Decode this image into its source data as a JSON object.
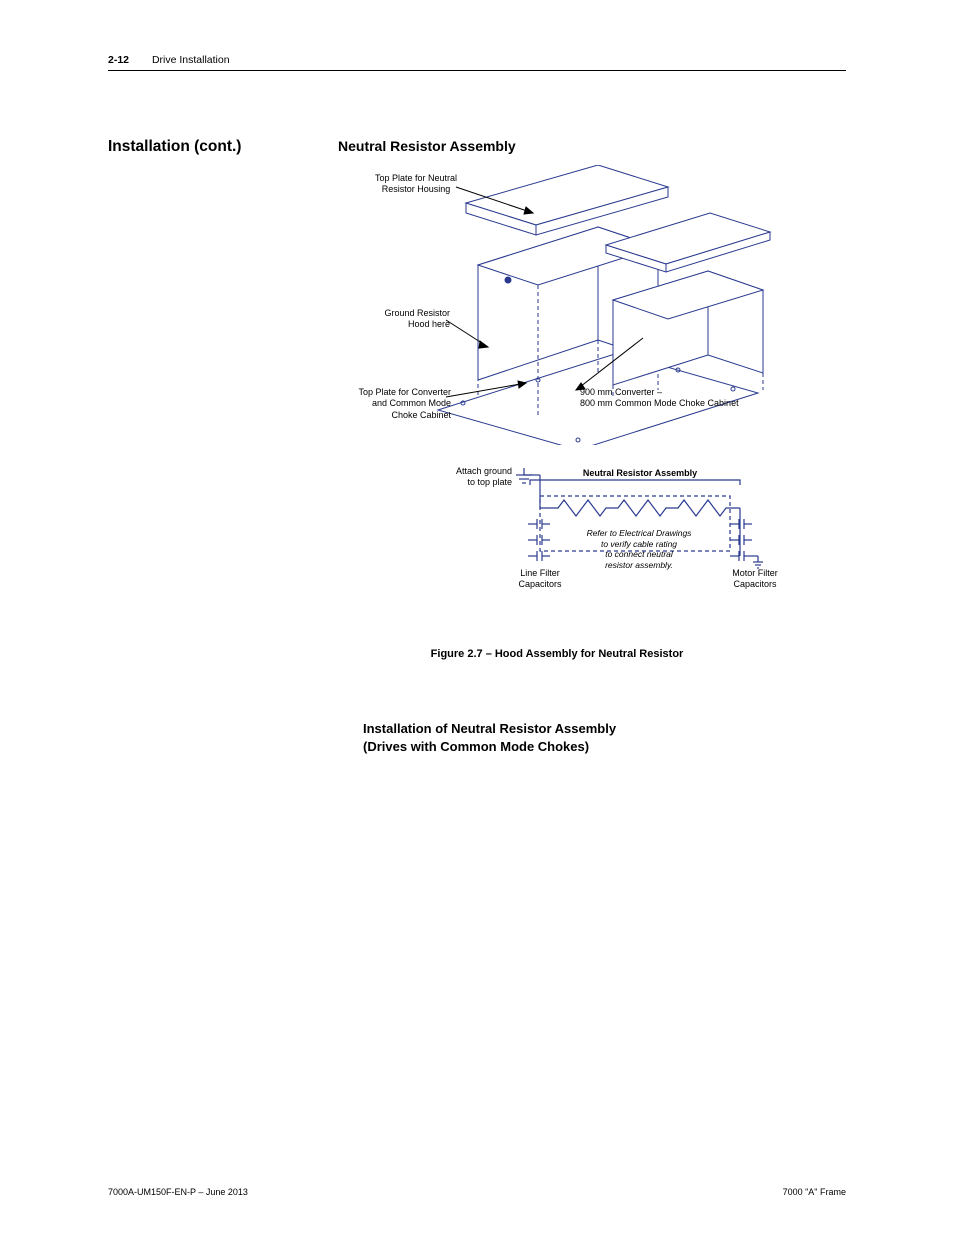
{
  "header": {
    "page_number": "2-12",
    "chapter": "Drive Installation"
  },
  "section_title": "Installation (cont.)",
  "sub_heading": "Neutral Resistor Assembly",
  "diagram1": {
    "labels": {
      "top_plate_neutral": "Top Plate for Neutral\nResistor Housing",
      "ground_resistor": "Ground Resistor\nHood here",
      "top_plate_converter": "Top Plate for Converter\nand Common Mode\nChoke Cabinet",
      "converter_note": "900 mm Converter –\n800 mm Common Mode Choke Cabinet"
    },
    "line_color": "#2a3a8f",
    "background": "#ffffff"
  },
  "diagram2": {
    "labels": {
      "ground": "Attach ground\nto top plate",
      "title": "Neutral Resistor Assembly",
      "note": "Refer to Electrical Drawings\nto verify cable rating\nto connect neutral\nresistor assembly.",
      "line_filter": "Line Filter\nCapacitors",
      "motor_filter": "Motor Filter\nCapacitors"
    },
    "schematic_color": "#2a3a8f"
  },
  "figure_caption": "Figure 2.7 – Hood Assembly for Neutral Resistor",
  "body_heading_line1": "Installation of Neutral Resistor Assembly",
  "body_heading_line2": "(Drives with Common Mode Chokes)",
  "footer": {
    "left": "7000A-UM150F-EN-P – June 2013",
    "right": "7000 \"A\" Frame"
  }
}
